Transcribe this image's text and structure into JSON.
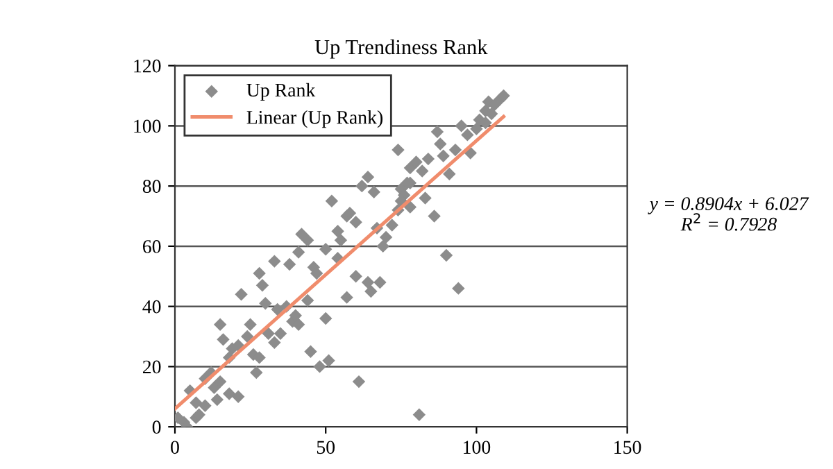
{
  "chart_data": {
    "type": "scatter",
    "title": "Up Trendiness Rank",
    "xlim": [
      0,
      150
    ],
    "xticks": [
      0,
      50,
      100,
      150
    ],
    "ylim": [
      0,
      120
    ],
    "yticks": [
      0,
      20,
      40,
      60,
      80,
      100,
      120
    ],
    "grid": "y",
    "legend": "top left",
    "annotations": [
      "y = 0.8904x + 6.027\nR$^{2}$ = 0.7928"
    ],
    "series": [
      {
        "name": "Up Rank",
        "marker": "diamond",
        "color": "#8c8c8c",
        "x": [
          3,
          1,
          4,
          5,
          7,
          7,
          8,
          10,
          10,
          12,
          13,
          14,
          15,
          15,
          16,
          18,
          18,
          19,
          21,
          21,
          22,
          24,
          25,
          26,
          27,
          28,
          28,
          29,
          30,
          31,
          33,
          33,
          34,
          35,
          37,
          38,
          39,
          40,
          41,
          41,
          42,
          44,
          44,
          45,
          46,
          47,
          48,
          50,
          50,
          51,
          52,
          54,
          54,
          55,
          57,
          57,
          58,
          60,
          60,
          61,
          62,
          64,
          64,
          65,
          66,
          67,
          68,
          69,
          70,
          72,
          74,
          74,
          75,
          76,
          78,
          78,
          78,
          75,
          77,
          80,
          82,
          83,
          84,
          86,
          87,
          88,
          89,
          90,
          91,
          93,
          94,
          95,
          97,
          98,
          100,
          101,
          103,
          103,
          104,
          105,
          106,
          108,
          109,
          81
        ],
        "values": [
          1.5,
          3,
          0,
          12,
          8,
          3,
          4,
          16,
          7,
          18,
          13,
          9,
          15,
          34,
          29,
          11,
          23,
          26,
          27,
          10,
          44,
          30,
          34,
          24,
          18,
          23,
          51,
          47,
          41,
          31,
          28,
          55,
          39,
          31,
          40,
          54,
          35,
          37,
          34,
          58,
          64,
          62,
          42,
          25,
          53,
          51,
          20,
          59,
          36,
          22,
          75,
          65,
          56,
          62,
          70,
          43,
          71,
          68,
          50,
          15,
          80,
          48,
          83,
          45,
          78,
          66,
          48,
          60,
          63,
          67,
          92,
          72,
          79,
          77,
          81,
          73,
          86,
          75,
          81,
          88,
          85,
          76,
          89,
          70,
          98,
          94,
          90,
          57,
          84,
          92,
          46,
          100,
          97,
          91,
          99,
          102,
          105,
          101,
          108,
          104,
          107,
          109,
          110,
          4
        ]
      },
      {
        "name": "Linear (Up Rank)",
        "type": "line",
        "marker": "none",
        "line_style": "solid",
        "color": "#f08c6c",
        "x": [
          0,
          109
        ],
        "values": [
          6.0,
          103.1
        ]
      }
    ]
  }
}
